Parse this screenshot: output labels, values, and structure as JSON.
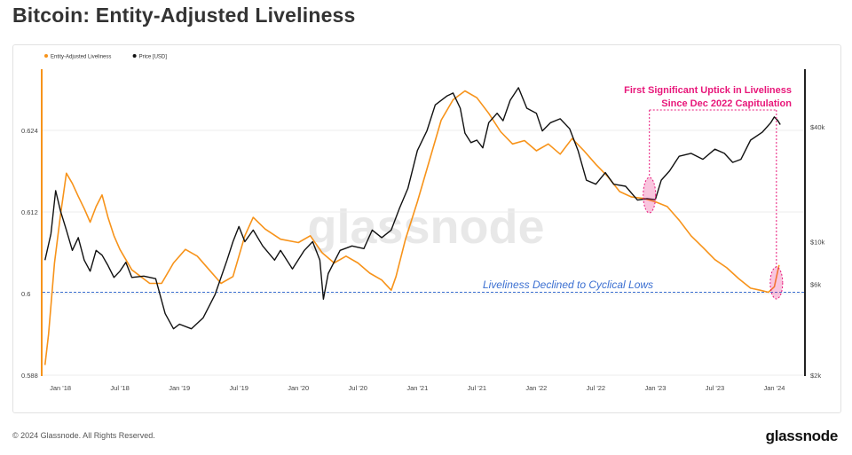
{
  "title": "Bitcoin: Entity-Adjusted Liveliness",
  "footer": {
    "copyright": "© 2024 Glassnode. All Rights Reserved.",
    "logo": "glassnode"
  },
  "watermark": "glassnode",
  "colors": {
    "liveliness": "#f7931a",
    "price": "#111111",
    "annotation": "#e8177a",
    "baseline": "#3b6fd1"
  },
  "chart_data": {
    "type": "line",
    "title": "Bitcoin: Entity-Adjusted Liveliness",
    "x_range": [
      2017.85,
      2024.25
    ],
    "x_ticks": [
      {
        "label": "Jan '18",
        "t": 2018.0
      },
      {
        "label": "Jul '18",
        "t": 2018.5
      },
      {
        "label": "Jan '19",
        "t": 2019.0
      },
      {
        "label": "Jul '19",
        "t": 2019.5
      },
      {
        "label": "Jan '20",
        "t": 2020.0
      },
      {
        "label": "Jul '20",
        "t": 2020.5
      },
      {
        "label": "Jan '21",
        "t": 2021.0
      },
      {
        "label": "Jul '21",
        "t": 2021.5
      },
      {
        "label": "Jan '22",
        "t": 2022.0
      },
      {
        "label": "Jul '22",
        "t": 2022.5
      },
      {
        "label": "Jan '23",
        "t": 2023.0
      },
      {
        "label": "Jul '23",
        "t": 2023.5
      },
      {
        "label": "Jan '24",
        "t": 2024.0
      }
    ],
    "y_left": {
      "range": [
        0.588,
        0.633
      ],
      "ticks": [
        {
          "label": "0.588",
          "v": 0.588
        },
        {
          "label": "0.6",
          "v": 0.6
        },
        {
          "label": "0.612",
          "v": 0.612
        },
        {
          "label": "0.624",
          "v": 0.624
        }
      ]
    },
    "y_right": {
      "scale": "log",
      "range": [
        2000,
        80000
      ],
      "ticks": [
        {
          "label": "$2k",
          "v": 2000
        },
        {
          "label": "$6k",
          "v": 6000
        },
        {
          "label": "$10k",
          "v": 10000
        },
        {
          "label": "$40k",
          "v": 40000
        }
      ]
    },
    "legend": {
      "position": "top-left",
      "entries": [
        "Entity-Adjusted Liveliness",
        "Price [USD]"
      ]
    },
    "series": [
      {
        "name": "Entity-Adjusted Liveliness",
        "axis": "left",
        "points": [
          [
            2017.87,
            0.5895
          ],
          [
            2017.9,
            0.594
          ],
          [
            2017.95,
            0.6045
          ],
          [
            2018.0,
            0.6115
          ],
          [
            2018.05,
            0.6177
          ],
          [
            2018.1,
            0.6162
          ],
          [
            2018.15,
            0.6143
          ],
          [
            2018.2,
            0.6125
          ],
          [
            2018.25,
            0.6105
          ],
          [
            2018.3,
            0.6128
          ],
          [
            2018.35,
            0.6145
          ],
          [
            2018.4,
            0.6112
          ],
          [
            2018.45,
            0.6085
          ],
          [
            2018.5,
            0.6065
          ],
          [
            2018.6,
            0.6035
          ],
          [
            2018.75,
            0.6015
          ],
          [
            2018.85,
            0.6015
          ],
          [
            2018.95,
            0.6045
          ],
          [
            2019.05,
            0.6065
          ],
          [
            2019.15,
            0.6055
          ],
          [
            2019.25,
            0.6035
          ],
          [
            2019.35,
            0.6015
          ],
          [
            2019.45,
            0.6025
          ],
          [
            2019.55,
            0.6085
          ],
          [
            2019.62,
            0.6112
          ],
          [
            2019.72,
            0.6095
          ],
          [
            2019.85,
            0.608
          ],
          [
            2020.0,
            0.6075
          ],
          [
            2020.1,
            0.6085
          ],
          [
            2020.2,
            0.606
          ],
          [
            2020.3,
            0.6045
          ],
          [
            2020.4,
            0.6055
          ],
          [
            2020.5,
            0.6045
          ],
          [
            2020.6,
            0.603
          ],
          [
            2020.7,
            0.602
          ],
          [
            2020.78,
            0.6005
          ],
          [
            2020.82,
            0.6025
          ],
          [
            2020.9,
            0.608
          ],
          [
            2021.0,
            0.6135
          ],
          [
            2021.1,
            0.6195
          ],
          [
            2021.2,
            0.6255
          ],
          [
            2021.3,
            0.6285
          ],
          [
            2021.4,
            0.6298
          ],
          [
            2021.5,
            0.6288
          ],
          [
            2021.6,
            0.6265
          ],
          [
            2021.7,
            0.6238
          ],
          [
            2021.8,
            0.622
          ],
          [
            2021.9,
            0.6225
          ],
          [
            2022.0,
            0.621
          ],
          [
            2022.1,
            0.622
          ],
          [
            2022.2,
            0.6205
          ],
          [
            2022.3,
            0.6228
          ],
          [
            2022.4,
            0.621
          ],
          [
            2022.5,
            0.619
          ],
          [
            2022.6,
            0.6172
          ],
          [
            2022.7,
            0.615
          ],
          [
            2022.8,
            0.6142
          ],
          [
            2022.9,
            0.614
          ],
          [
            2023.0,
            0.6135
          ],
          [
            2023.1,
            0.6128
          ],
          [
            2023.2,
            0.6108
          ],
          [
            2023.3,
            0.6085
          ],
          [
            2023.4,
            0.6068
          ],
          [
            2023.5,
            0.605
          ],
          [
            2023.6,
            0.6038
          ],
          [
            2023.7,
            0.6022
          ],
          [
            2023.8,
            0.6008
          ],
          [
            2023.88,
            0.6005
          ],
          [
            2023.95,
            0.6002
          ],
          [
            2024.0,
            0.601
          ],
          [
            2024.04,
            0.6042
          ]
        ]
      },
      {
        "name": "Price [USD]",
        "axis": "right",
        "points": [
          [
            2017.87,
            8000
          ],
          [
            2017.92,
            11000
          ],
          [
            2017.96,
            18500
          ],
          [
            2018.0,
            14500
          ],
          [
            2018.05,
            11500
          ],
          [
            2018.1,
            9000
          ],
          [
            2018.15,
            10500
          ],
          [
            2018.2,
            8000
          ],
          [
            2018.25,
            7000
          ],
          [
            2018.3,
            9000
          ],
          [
            2018.35,
            8500
          ],
          [
            2018.4,
            7500
          ],
          [
            2018.45,
            6500
          ],
          [
            2018.5,
            7000
          ],
          [
            2018.55,
            7800
          ],
          [
            2018.6,
            6500
          ],
          [
            2018.7,
            6600
          ],
          [
            2018.8,
            6400
          ],
          [
            2018.88,
            4200
          ],
          [
            2018.95,
            3500
          ],
          [
            2019.0,
            3700
          ],
          [
            2019.1,
            3500
          ],
          [
            2019.2,
            4000
          ],
          [
            2019.3,
            5300
          ],
          [
            2019.4,
            8000
          ],
          [
            2019.45,
            10000
          ],
          [
            2019.5,
            12000
          ],
          [
            2019.55,
            10000
          ],
          [
            2019.62,
            11500
          ],
          [
            2019.7,
            9500
          ],
          [
            2019.8,
            8000
          ],
          [
            2019.85,
            9000
          ],
          [
            2019.95,
            7200
          ],
          [
            2020.05,
            9000
          ],
          [
            2020.12,
            10000
          ],
          [
            2020.18,
            8000
          ],
          [
            2020.21,
            5000
          ],
          [
            2020.25,
            6800
          ],
          [
            2020.35,
            9000
          ],
          [
            2020.45,
            9500
          ],
          [
            2020.55,
            9200
          ],
          [
            2020.62,
            11500
          ],
          [
            2020.7,
            10500
          ],
          [
            2020.78,
            11500
          ],
          [
            2020.85,
            15000
          ],
          [
            2020.92,
            19000
          ],
          [
            2021.0,
            30000
          ],
          [
            2021.08,
            38000
          ],
          [
            2021.15,
            52000
          ],
          [
            2021.25,
            58000
          ],
          [
            2021.3,
            60000
          ],
          [
            2021.36,
            50000
          ],
          [
            2021.4,
            37000
          ],
          [
            2021.45,
            33000
          ],
          [
            2021.5,
            34000
          ],
          [
            2021.55,
            31000
          ],
          [
            2021.6,
            42000
          ],
          [
            2021.67,
            47000
          ],
          [
            2021.72,
            43000
          ],
          [
            2021.78,
            55000
          ],
          [
            2021.85,
            64000
          ],
          [
            2021.92,
            50000
          ],
          [
            2022.0,
            47000
          ],
          [
            2022.05,
            38000
          ],
          [
            2022.12,
            42000
          ],
          [
            2022.2,
            44000
          ],
          [
            2022.28,
            39000
          ],
          [
            2022.35,
            30000
          ],
          [
            2022.42,
            21000
          ],
          [
            2022.5,
            20000
          ],
          [
            2022.58,
            23000
          ],
          [
            2022.65,
            20000
          ],
          [
            2022.75,
            19500
          ],
          [
            2022.85,
            16500
          ],
          [
            2022.93,
            16800
          ],
          [
            2023.0,
            16600
          ],
          [
            2023.05,
            21000
          ],
          [
            2023.12,
            23500
          ],
          [
            2023.2,
            28000
          ],
          [
            2023.3,
            29000
          ],
          [
            2023.4,
            27000
          ],
          [
            2023.5,
            30500
          ],
          [
            2023.58,
            29000
          ],
          [
            2023.65,
            26000
          ],
          [
            2023.72,
            27000
          ],
          [
            2023.8,
            34000
          ],
          [
            2023.9,
            37500
          ],
          [
            2023.97,
            42000
          ],
          [
            2024.0,
            45000
          ],
          [
            2024.03,
            43000
          ],
          [
            2024.05,
            41000
          ]
        ]
      }
    ],
    "annotations": [
      {
        "text": "First Significant Uptick in Liveliness",
        "color": "#e8177a"
      },
      {
        "text": "Since Dec 2022 Capitulation",
        "color": "#e8177a"
      },
      {
        "text": "Liveliness Declined to Cyclical Lows",
        "color": "#3b6fd1"
      }
    ],
    "baseline_value": 0.6002,
    "highlight_times": [
      2022.95,
      2024.04
    ]
  }
}
